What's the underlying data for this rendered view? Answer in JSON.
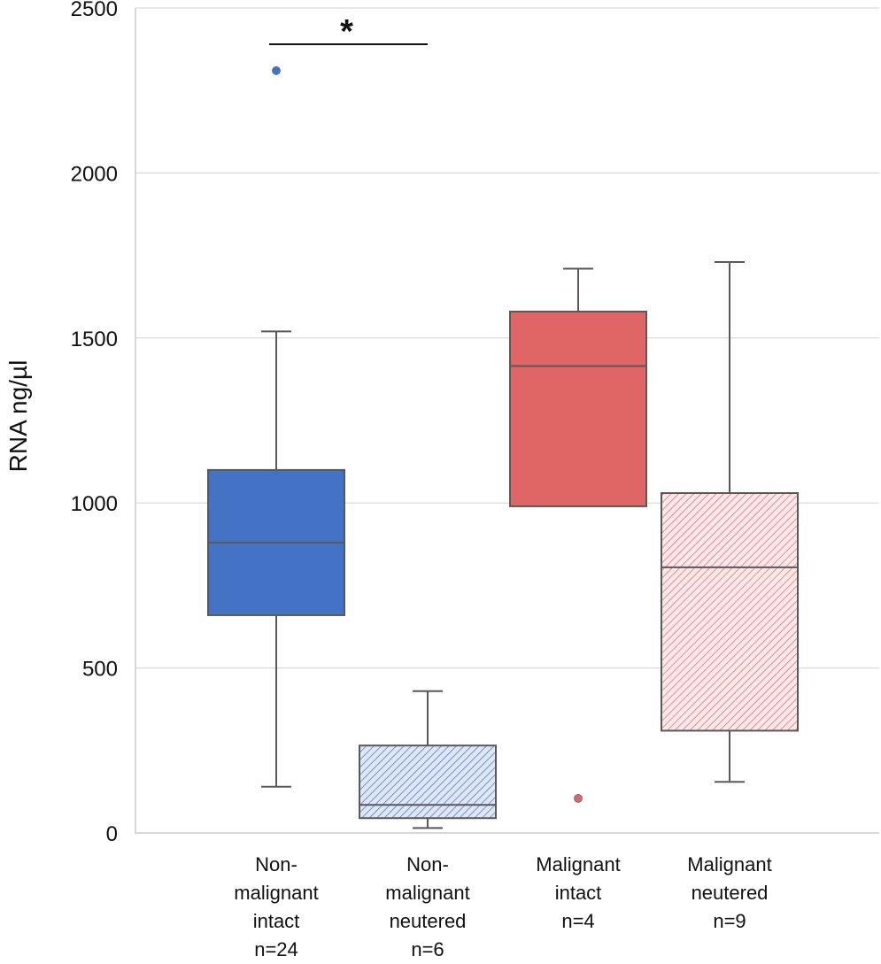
{
  "chart_data": {
    "type": "boxplot",
    "title": "",
    "xlabel": "",
    "ylabel": "RNA ng/µl",
    "ylim": [
      0,
      2500
    ],
    "yticks": [
      0,
      500,
      1000,
      1500,
      2000,
      2500
    ],
    "grid": true,
    "categories": [
      {
        "label_lines": [
          "Non-",
          "malignant",
          "intact",
          "n=24"
        ],
        "fill": "#4472c4",
        "pattern": "solid",
        "whisker_low": 140,
        "q1": 660,
        "median": 880,
        "q3": 1100,
        "whisker_high": 1520,
        "outliers": [
          2310
        ]
      },
      {
        "label_lines": [
          "Non-",
          "malignant",
          "neutered",
          "n=6"
        ],
        "fill": "#4472c4",
        "pattern": "hatched",
        "whisker_low": 15,
        "q1": 45,
        "median": 85,
        "q3": 265,
        "whisker_high": 430,
        "outliers": []
      },
      {
        "label_lines": [
          "Malignant",
          "intact",
          "n=4"
        ],
        "fill": "#e06666",
        "pattern": "solid",
        "whisker_low": 990,
        "q1": 990,
        "median": 1415,
        "q3": 1580,
        "whisker_high": 1710,
        "outliers": [
          105
        ]
      },
      {
        "label_lines": [
          "Malignant",
          "neutered",
          "n=9"
        ],
        "fill": "#e06666",
        "pattern": "hatched",
        "whisker_low": 155,
        "q1": 310,
        "median": 805,
        "q3": 1030,
        "whisker_high": 1730,
        "outliers": []
      }
    ],
    "annotations": [
      {
        "text": "*",
        "between": [
          0,
          1
        ],
        "value": 2390
      }
    ],
    "colors": {
      "axis": "#595959",
      "grid": "#d9d9d9",
      "text": "#111111"
    }
  }
}
